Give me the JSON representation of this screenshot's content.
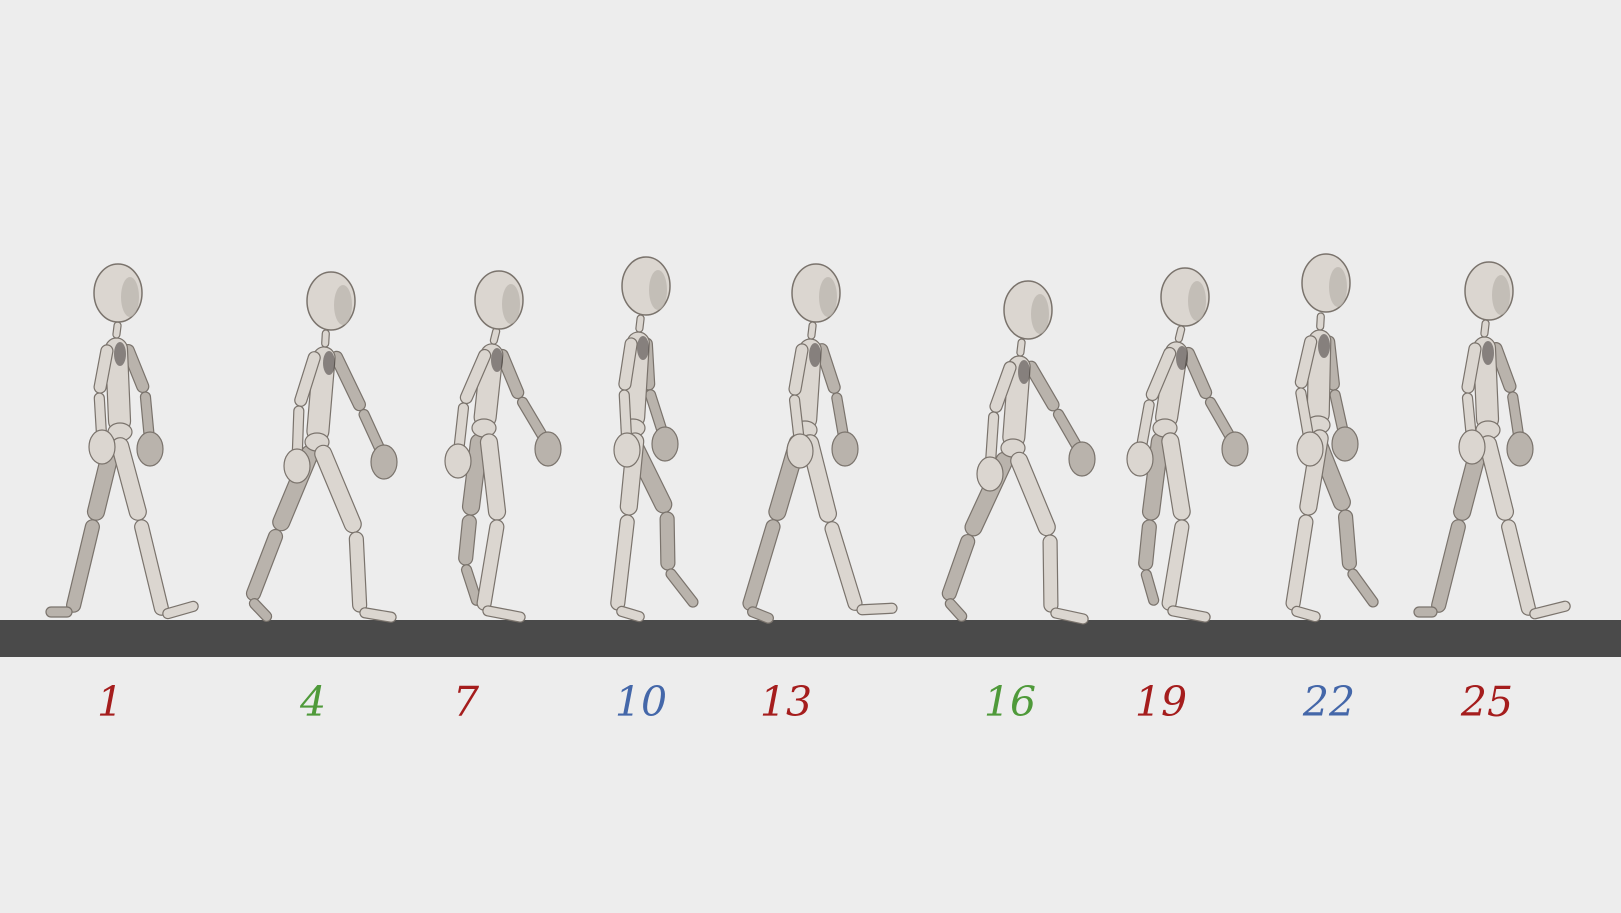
{
  "colors": {
    "background": "#ededed",
    "ground": "#4a4a4a",
    "figure_fill": "#dbd6d0",
    "figure_shade": "#b9b3ac",
    "figure_outline": "#7a736c",
    "figure_dark": "#3f3b38",
    "contact_pose": "#a51d1d",
    "down_pose": "#4f9a3a",
    "passing_pose": "#4467a9"
  },
  "frames": [
    {
      "label": "1",
      "color": "#a51d1d",
      "pose": "contact-right-forward"
    },
    {
      "label": "4",
      "color": "#4f9a3a",
      "pose": "down-right"
    },
    {
      "label": "7",
      "color": "#a51d1d",
      "pose": "passing-lifting-left"
    },
    {
      "label": "10",
      "color": "#4467a9",
      "pose": "up-left-forward"
    },
    {
      "label": "13",
      "color": "#a51d1d",
      "pose": "contact-left-forward"
    },
    {
      "label": "16",
      "color": "#4f9a3a",
      "pose": "down-left"
    },
    {
      "label": "19",
      "color": "#a51d1d",
      "pose": "passing-lifting-right"
    },
    {
      "label": "22",
      "color": "#4467a9",
      "pose": "up-right-forward"
    },
    {
      "label": "25",
      "color": "#a51d1d",
      "pose": "contact-right-forward"
    }
  ]
}
